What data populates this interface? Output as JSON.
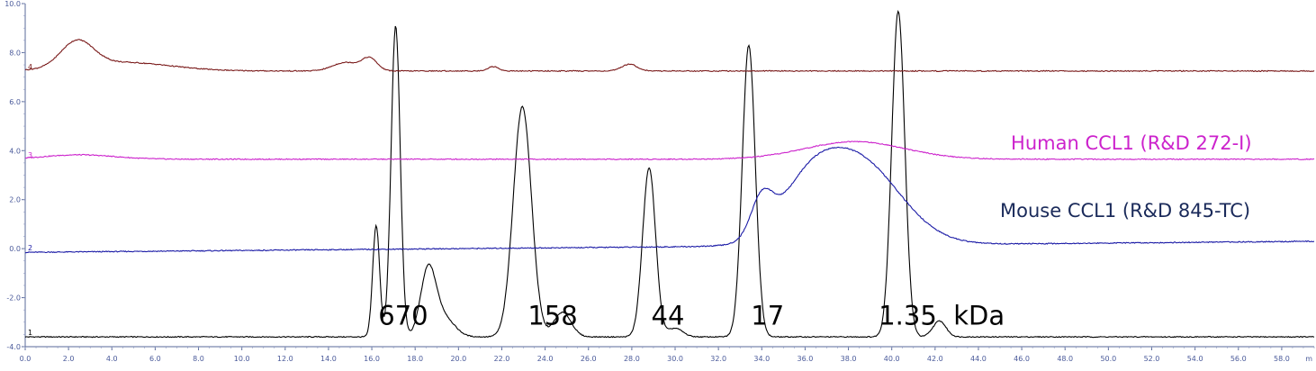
{
  "chart_data": {
    "type": "line",
    "xlim": [
      0,
      59.5
    ],
    "ylim": [
      -4,
      10
    ],
    "x_ticks": [
      "0.0",
      "2.0",
      "4.0",
      "6.0",
      "8.0",
      "10.0",
      "12.0",
      "14.0",
      "16.0",
      "18.0",
      "20.0",
      "22.0",
      "24.0",
      "26.0",
      "28.0",
      "30.0",
      "32.0",
      "34.0",
      "36.0",
      "38.0",
      "40.0",
      "42.0",
      "44.0",
      "46.0",
      "48.0",
      "50.0",
      "52.0",
      "54.0",
      "56.0",
      "58.0"
    ],
    "x_ticks_value": [
      0,
      2,
      4,
      6,
      8,
      10,
      12,
      14,
      16,
      18,
      20,
      22,
      24,
      26,
      28,
      30,
      32,
      34,
      36,
      38,
      40,
      42,
      44,
      46,
      48,
      50,
      52,
      54,
      56,
      58
    ],
    "y_ticks": [
      "10.0",
      "8.0",
      "6.0",
      "4.0",
      "2.0",
      "0.0",
      "-2.0",
      "-4.0"
    ],
    "y_ticks_value": [
      10,
      8,
      6,
      4,
      2,
      0,
      -2,
      -4
    ],
    "axis_label_x_fragment": "m",
    "series": [
      {
        "trace_number": "1",
        "color": "#000000",
        "baseline": -3.6,
        "peaks": [
          {
            "x": 16.2,
            "height": 4.55,
            "width": 0.16
          },
          {
            "x": 17.1,
            "height": 12.7,
            "width": 0.21
          },
          {
            "x": 18.6,
            "height": 2.65,
            "width": 0.35
          },
          {
            "x": 19.3,
            "height": 0.8,
            "width": 0.5
          },
          {
            "x": 22.95,
            "height": 9.4,
            "width": 0.42
          },
          {
            "x": 24.8,
            "height": 1.0,
            "width": 0.4
          },
          {
            "x": 28.8,
            "height": 6.9,
            "width": 0.3
          },
          {
            "x": 30.0,
            "height": 0.35,
            "width": 0.35
          },
          {
            "x": 33.4,
            "height": 11.9,
            "width": 0.3
          },
          {
            "x": 40.3,
            "height": 13.3,
            "width": 0.3
          },
          {
            "x": 42.2,
            "height": 0.65,
            "width": 0.3
          }
        ]
      },
      {
        "trace_number": "2",
        "color": "#1a1aa6",
        "baseline": -0.15,
        "baseline_end": 0.3,
        "peaks": [
          {
            "x": 34.0,
            "height": 1.5,
            "width": 0.5
          },
          {
            "x": 38.3,
            "height": 3.55,
            "width": 2.0
          },
          {
            "x": 36.0,
            "height": 1.4,
            "width": 1.3
          }
        ]
      },
      {
        "trace_number": "3",
        "color": "#cc22cc",
        "baseline": 3.65,
        "peaks": [
          {
            "x": 2.5,
            "height": 0.18,
            "width": 1.6
          },
          {
            "x": 38.3,
            "height": 0.72,
            "width": 2.3
          }
        ]
      },
      {
        "trace_number": "4",
        "color": "#7a1a1a",
        "baseline": 7.25,
        "peaks": [
          {
            "x": 2.4,
            "height": 1.05,
            "width": 0.75
          },
          {
            "x": 4.5,
            "height": 0.35,
            "width": 2.2
          },
          {
            "x": 14.8,
            "height": 0.35,
            "width": 0.6
          },
          {
            "x": 15.9,
            "height": 0.5,
            "width": 0.35
          },
          {
            "x": 21.6,
            "height": 0.18,
            "width": 0.25
          },
          {
            "x": 27.9,
            "height": 0.28,
            "width": 0.35
          }
        ]
      }
    ],
    "annotations": [
      {
        "text": "670",
        "x": 16.3,
        "y": -3.1
      },
      {
        "text": "158",
        "x": 23.2,
        "y": -3.1
      },
      {
        "text": "44",
        "x": 28.9,
        "y": -3.1
      },
      {
        "text": "17",
        "x": 33.5,
        "y": -3.1
      },
      {
        "text": "1.35  kDa",
        "x": 39.4,
        "y": -3.1
      }
    ],
    "legend_labels": [
      {
        "text": "Human CCL1 (R&D 272-I)",
        "color": "#cc22cc",
        "x": 45.5,
        "y": 4.05
      },
      {
        "text": "Mouse CCL1 (R&D 845-TC)",
        "color": "#1a2a5a",
        "x": 45.0,
        "y": 1.3
      }
    ]
  }
}
